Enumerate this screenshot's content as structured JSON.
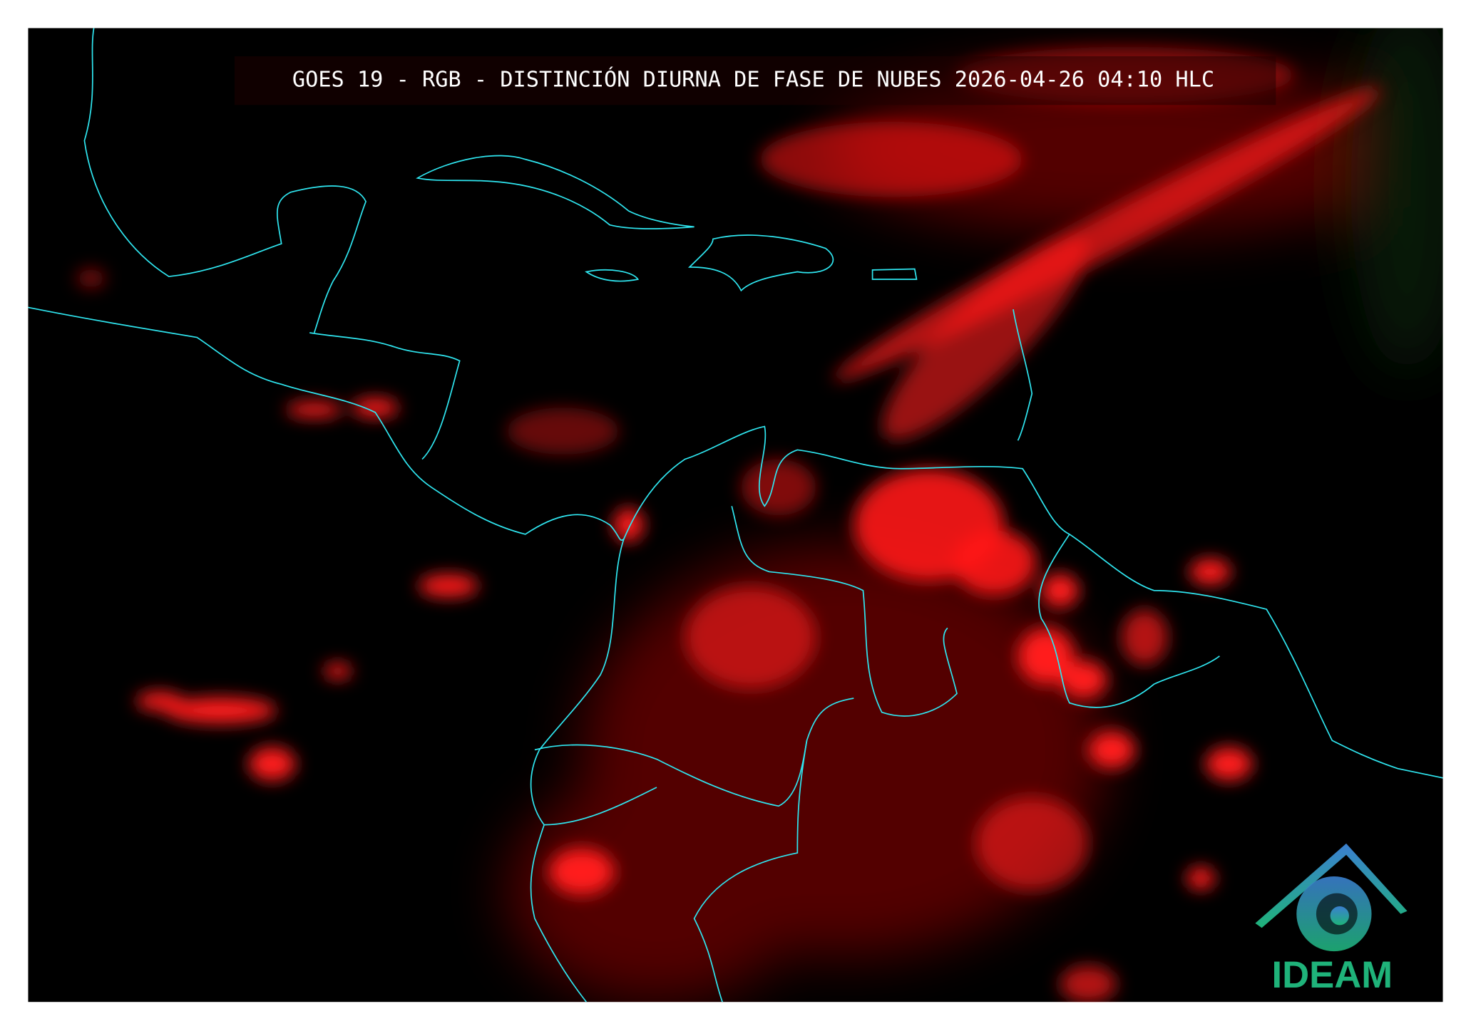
{
  "header": {
    "title": "GOES 19 - RGB - DISTINCIÓN DIURNA DE FASE DE NUBES 2026-04-26 04:10 HLC"
  },
  "logo": {
    "text": "IDEAM"
  }
}
